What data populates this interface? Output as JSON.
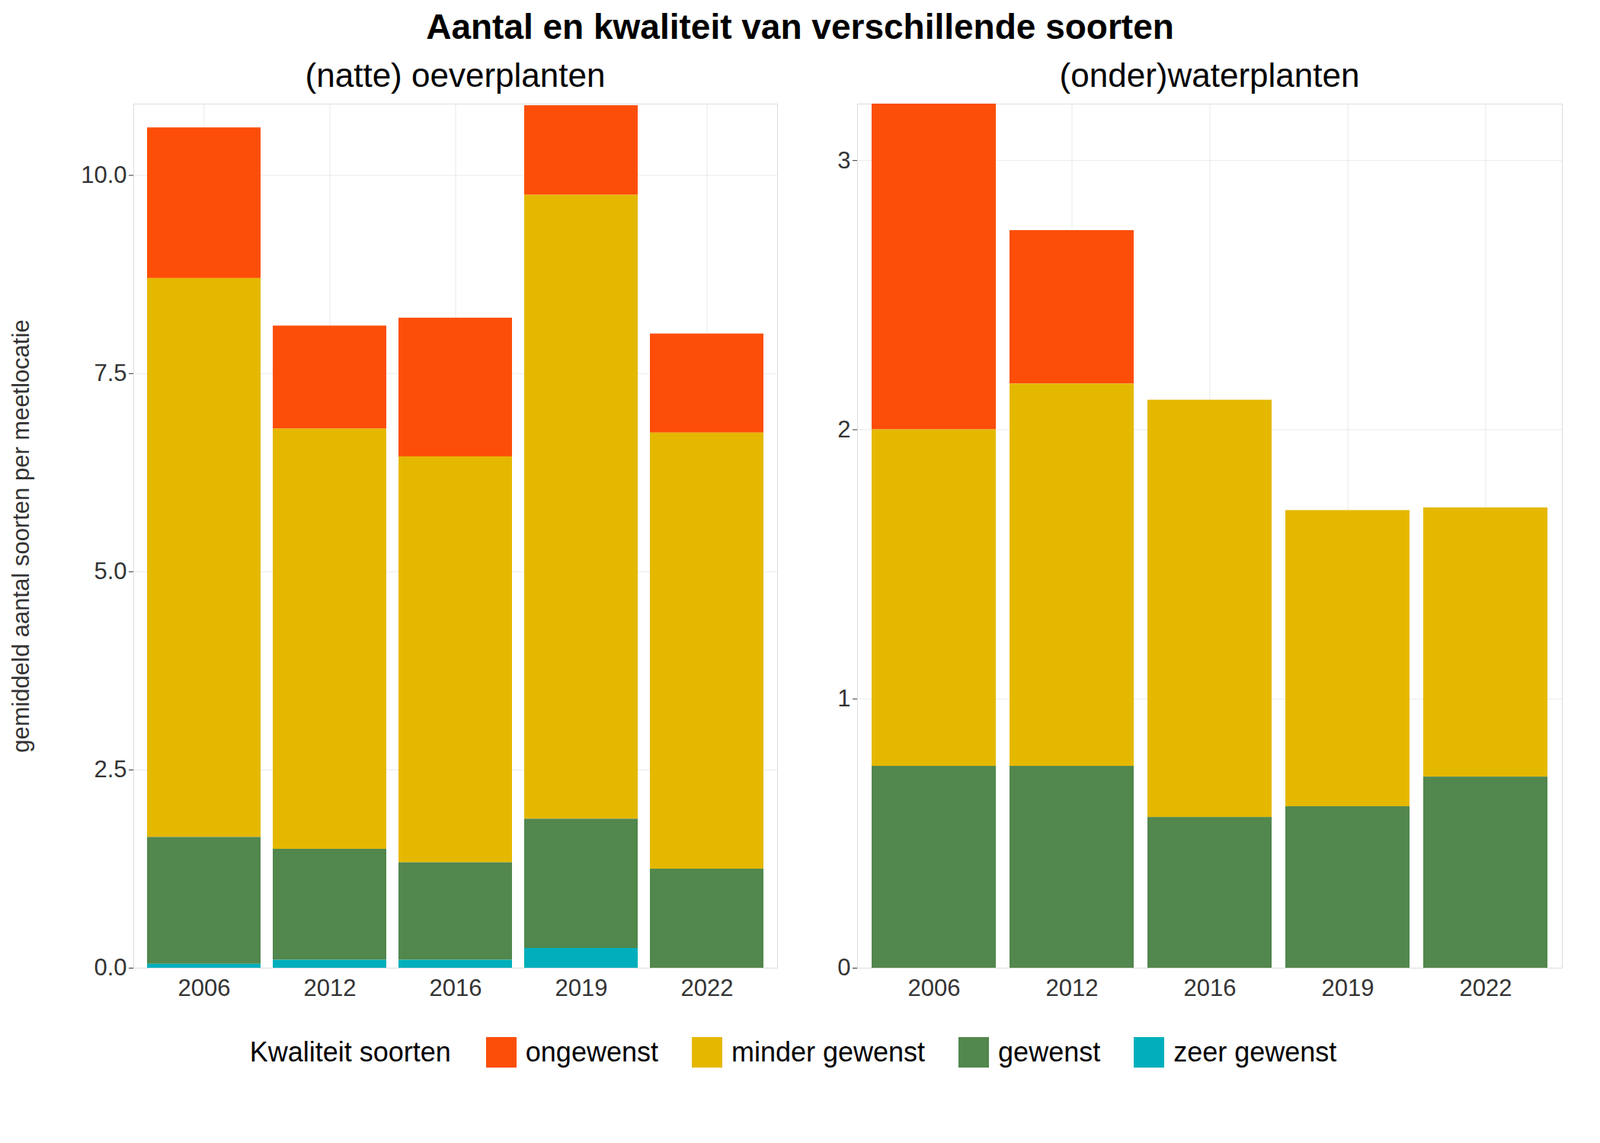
{
  "title": "Aantal en kwaliteit van verschillende soorten",
  "legend_title": "Kwaliteit soorten",
  "chart_data": [
    {
      "type": "bar",
      "title": "(natte) oeverplanten",
      "stacked": true,
      "grid": true,
      "legend": "bottom",
      "y_label": "gemiddeld aantal soorten per meetlocatie",
      "categories": [
        "2006",
        "2012",
        "2016",
        "2019",
        "2022"
      ],
      "series": [
        {
          "name": "ongewenst",
          "color": "#FC4E08",
          "values": [
            1.9,
            1.3,
            1.75,
            1.13,
            1.25
          ]
        },
        {
          "name": "minder gewenst",
          "color": "#E5B800",
          "values": [
            7.05,
            5.3,
            5.12,
            7.87,
            5.5
          ]
        },
        {
          "name": "gewenst",
          "color": "#52874D",
          "values": [
            1.6,
            1.4,
            1.23,
            1.63,
            1.25
          ]
        },
        {
          "name": "zeer gewenst",
          "color": "#00AFBB",
          "values": [
            0.05,
            0.1,
            0.1,
            0.25,
            0
          ]
        }
      ],
      "ylim": [
        0,
        10.9
      ],
      "yticks": [
        {
          "value": 0,
          "label": "0.0"
        },
        {
          "value": 2.5,
          "label": "2.5"
        },
        {
          "value": 5,
          "label": "5.0"
        },
        {
          "value": 7.5,
          "label": "7.5"
        },
        {
          "value": 10,
          "label": "10.0"
        }
      ]
    },
    {
      "type": "bar",
      "title": "(onder)waterplanten",
      "stacked": true,
      "grid": true,
      "legend": "bottom",
      "categories": [
        "2006",
        "2012",
        "2016",
        "2019",
        "2022"
      ],
      "series": [
        {
          "name": "ongewenst",
          "color": "#FC4E08",
          "values": [
            1.21,
            0.57,
            0,
            0,
            0
          ]
        },
        {
          "name": "minder gewenst",
          "color": "#E5B800",
          "values": [
            1.25,
            1.42,
            1.55,
            1.1,
            1.0
          ]
        },
        {
          "name": "gewenst",
          "color": "#52874D",
          "values": [
            0.75,
            0.75,
            0.56,
            0.6,
            0.71
          ]
        },
        {
          "name": "zeer gewenst",
          "color": "#00AFBB",
          "values": [
            0,
            0,
            0,
            0,
            0
          ]
        }
      ],
      "ylim": [
        0,
        3.21
      ],
      "yticks": [
        0,
        1,
        2,
        3
      ]
    }
  ]
}
